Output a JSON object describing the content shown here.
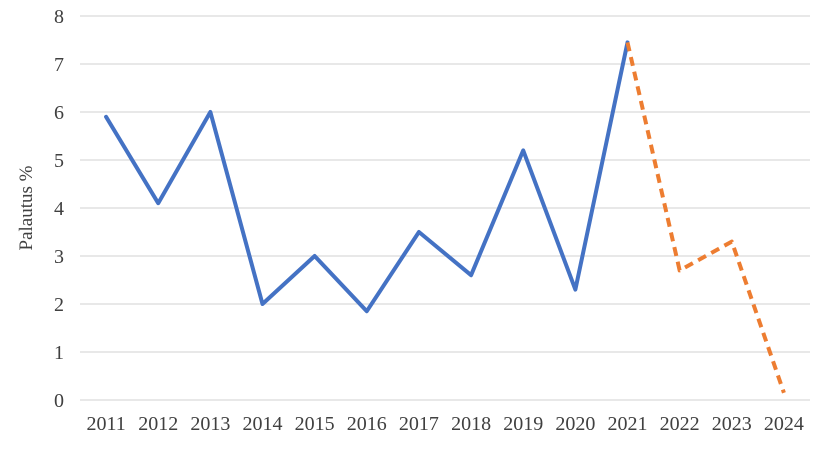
{
  "chart_data": {
    "type": "line",
    "title": "",
    "xlabel": "",
    "ylabel": "Palautus %",
    "categories": [
      "2011",
      "2012",
      "2013",
      "2014",
      "2015",
      "2016",
      "2017",
      "2018",
      "2019",
      "2020",
      "2021",
      "2022",
      "2023",
      "2024"
    ],
    "series": [
      {
        "name": "historical-solid-blue",
        "color": "#4472C4",
        "line_style": "solid",
        "values": [
          5.9,
          4.1,
          6.0,
          2.0,
          3.0,
          1.85,
          3.5,
          2.6,
          5.2,
          2.3,
          7.45,
          null,
          null,
          null
        ]
      },
      {
        "name": "forecast-dashed-orange",
        "color": "#ED7D31",
        "line_style": "dashed",
        "values": [
          null,
          null,
          null,
          null,
          null,
          null,
          null,
          null,
          null,
          null,
          7.45,
          2.7,
          3.3,
          0.15
        ]
      }
    ],
    "ylim": [
      0,
      8
    ],
    "ytick_step": 1,
    "ytick_labels": [
      "0",
      "1",
      "2",
      "3",
      "4",
      "5",
      "6",
      "7",
      "8"
    ],
    "grid": true,
    "legend_position": "none"
  },
  "colors": {
    "gridline": "#D9D9D9",
    "axis_text": "#404040",
    "background": "#FFFFFF",
    "solid_line": "#4472C4",
    "dashed_line": "#ED7D31"
  }
}
